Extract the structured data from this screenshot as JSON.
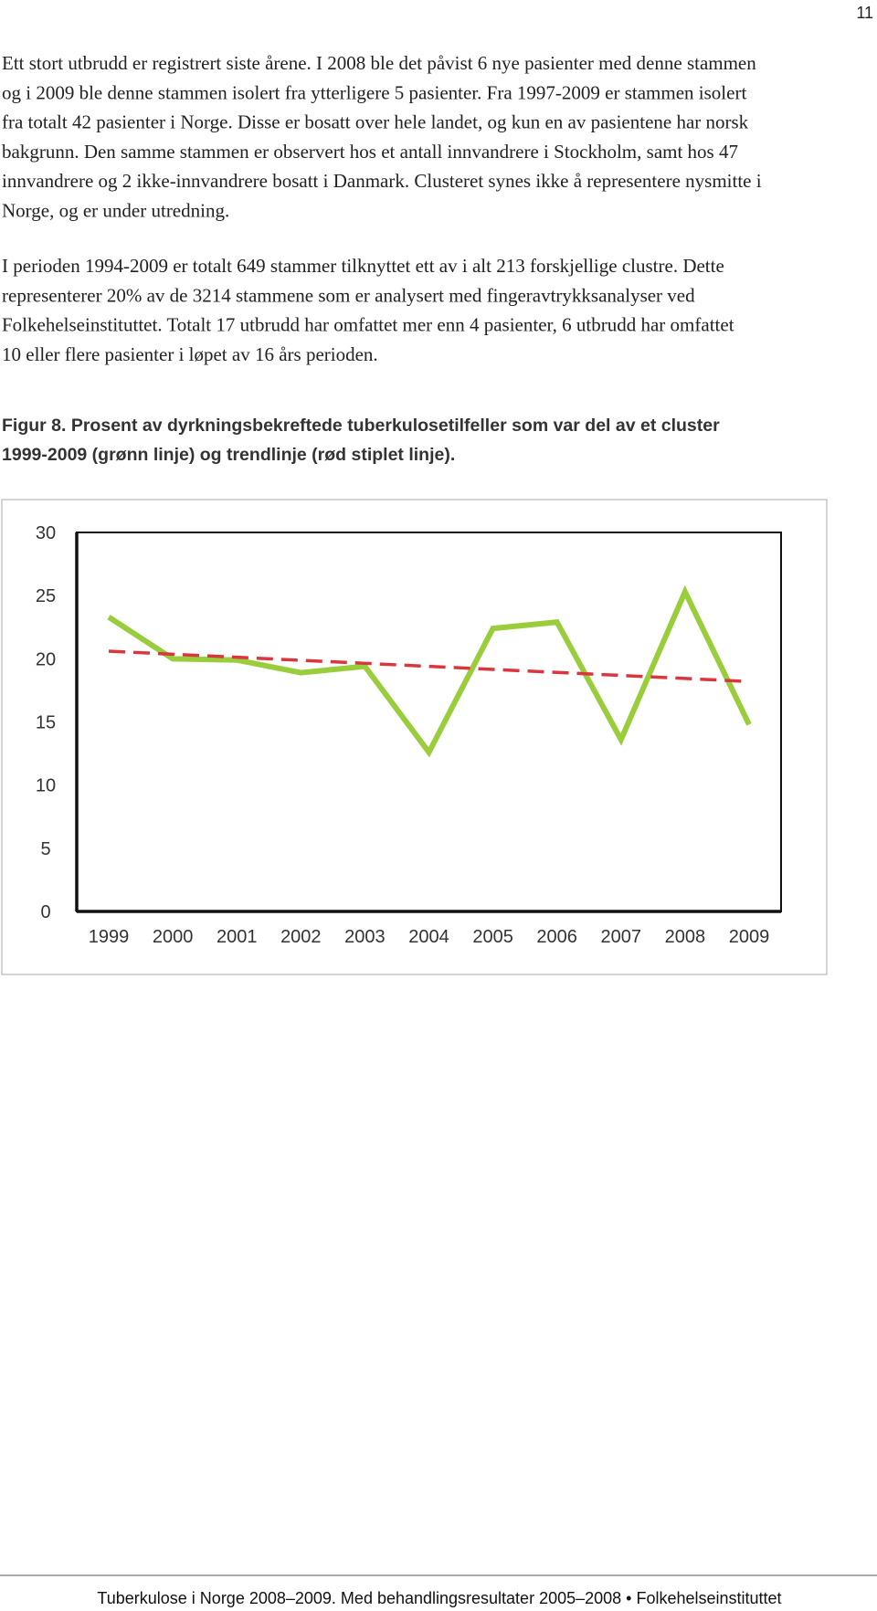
{
  "page_number": "11",
  "paragraphs": [
    {
      "lines": [
        "Ett stort utbrudd er registrert siste årene. I 2008 ble det påvist 6 nye pasienter med denne stammen",
        "og i 2009 ble denne stammen isolert fra ytterligere 5 pasienter. Fra 1997-2009 er stammen isolert",
        "fra totalt 42 pasienter i Norge. Disse er bosatt over hele landet, og kun en av pasientene har norsk",
        "bakgrunn. Den samme stammen er observert hos et antall innvandrere i Stockholm, samt hos 47",
        "innvandrere og 2 ikke-innvandrere bosatt i Danmark. Clusteret synes ikke å representere nysmitte i",
        "Norge, og er under utredning."
      ]
    },
    {
      "lines": [
        "I perioden 1994-2009 er totalt 649 stammer tilknyttet ett av i alt 213 forskjellige clustre. Dette",
        "representerer 20% av de 3214 stammene som er analysert med fingeravtrykksanalyser ved",
        "Folkehelseinstituttet. Totalt 17 utbrudd har omfattet mer enn 4 pasienter, 6 utbrudd har omfattet",
        "10 eller flere pasienter i løpet av 16 års perioden."
      ]
    }
  ],
  "figure_caption": {
    "lines": [
      "Figur 8. Prosent av dyrkningsbekreftede tuberkulosetilfeller som var del av et cluster",
      "1999-2009 (grønn linje) og trendlinje (rød stiplet linje)."
    ]
  },
  "chart_data": {
    "type": "line",
    "categories": [
      "1999",
      "2000",
      "2001",
      "2002",
      "2003",
      "2004",
      "2005",
      "2006",
      "2007",
      "2008",
      "2009"
    ],
    "series": [
      {
        "color": "#9acd3c",
        "values": [
          23.3,
          20.0,
          19.9,
          18.9,
          19.4,
          12.6,
          22.4,
          22.9,
          13.6,
          25.3,
          14.8
        ]
      },
      {
        "color": "#d9363e",
        "dashed": true,
        "values": [
          20.6,
          20.36,
          20.12,
          19.88,
          19.64,
          19.4,
          19.16,
          18.92,
          18.68,
          18.44,
          18.2
        ]
      }
    ],
    "ylim": [
      0,
      30
    ],
    "yticks": [
      0,
      5,
      10,
      15,
      20,
      25,
      30
    ],
    "grid": false
  },
  "footer": "Tuberkulose i Norge 2008–2009. Med behandlingsresultater 2005–2008 • Folkehelseinstituttet"
}
